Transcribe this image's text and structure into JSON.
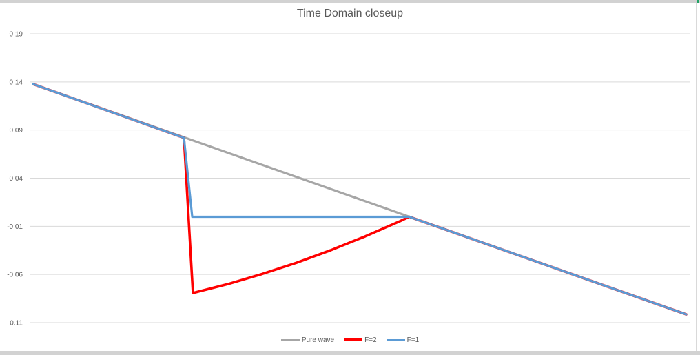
{
  "chart_data": {
    "type": "line",
    "title": "Time Domain closeup",
    "xlabel": "",
    "ylabel": "",
    "xlim": [
      0,
      1
    ],
    "ylim": [
      -0.11,
      0.19
    ],
    "yticks": [
      "0.19",
      "0.14",
      "0.09",
      "0.04",
      "-0.01",
      "-0.06",
      "-0.11"
    ],
    "grid": true,
    "legend_position": "bottom-center",
    "series": [
      {
        "name": "Pure wave",
        "color": "#A6A6A6",
        "width": 3.2,
        "points": [
          [
            0,
            0.1377
          ],
          [
            1,
            -0.1014
          ]
        ]
      },
      {
        "name": "F=2",
        "color": "#FF0000",
        "width": 3.6,
        "points": [
          [
            0,
            0.1377
          ],
          [
            0.231,
            0.0819
          ],
          [
            0.2447,
            -0.0792
          ],
          [
            0.2975,
            -0.0701
          ],
          [
            0.3502,
            -0.0596
          ],
          [
            0.403,
            -0.0479
          ],
          [
            0.4557,
            -0.0348
          ],
          [
            0.5084,
            -0.0204
          ],
          [
            0.5612,
            -0.0048
          ],
          [
            0.5759,
            -0.0001
          ],
          [
            1,
            -0.1014
          ]
        ]
      },
      {
        "name": "F=1",
        "color": "#5B9BD5",
        "width": 3.2,
        "points": [
          [
            0,
            0.1377
          ],
          [
            0.231,
            0.0819
          ],
          [
            0.2437,
            -0.0001
          ],
          [
            0.5759,
            -0.0001
          ],
          [
            1,
            -0.1014
          ]
        ]
      }
    ]
  },
  "styles": {
    "title_color": "#595959",
    "axis_label_color": "#595959",
    "gridline_color": "#D9D9D9",
    "border_color": "#D2D2D2",
    "corner_accent_color": "#21A366",
    "background": "#FFFFFF"
  }
}
